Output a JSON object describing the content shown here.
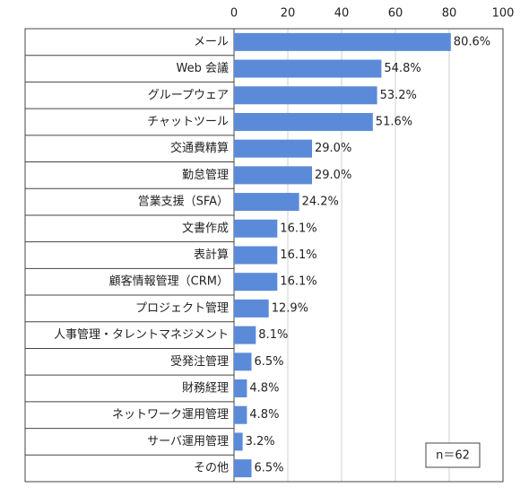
{
  "chart_data": {
    "type": "bar",
    "orientation": "horizontal",
    "categories": [
      "メール",
      "Web 会議",
      "グループウェア",
      "チャットツール",
      "交通費精算",
      "勤怠管理",
      "営業支援（SFA）",
      "文書作成",
      "表計算",
      "顧客情報管理（CRM）",
      "プロジェクト管理",
      "人事管理・タレントマネジメント",
      "受発注管理",
      "財務経理",
      "ネットワーク運用管理",
      "サーバ運用管理",
      "その他"
    ],
    "values": [
      80.6,
      54.8,
      53.2,
      51.6,
      29.0,
      29.0,
      24.2,
      16.1,
      16.1,
      16.1,
      12.9,
      8.1,
      6.5,
      4.8,
      4.8,
      3.2,
      6.5
    ],
    "value_labels": [
      "80.6%",
      "54.8%",
      "53.2%",
      "51.6%",
      "29.0%",
      "29.0%",
      "24.2%",
      "16.1%",
      "16.1%",
      "16.1%",
      "12.9%",
      "8.1%",
      "6.5%",
      "4.8%",
      "4.8%",
      "3.2%",
      "6.5%"
    ],
    "color": "#5b8bd8",
    "xlim": [
      0,
      100
    ],
    "xticks": [
      0,
      20,
      40,
      60,
      80,
      100
    ],
    "grid": true,
    "annotation": "n＝62"
  }
}
